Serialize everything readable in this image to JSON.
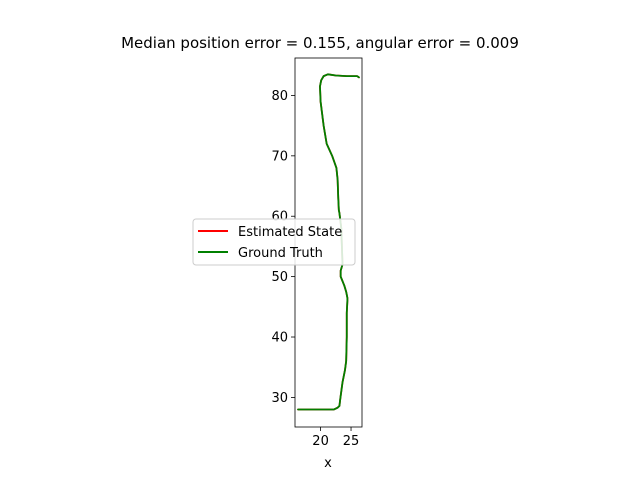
{
  "chart_data": {
    "type": "line",
    "title": "Median position error = 0.155, angular error = 0.009",
    "xlabel": "x",
    "ylabel": "",
    "xlim": [
      15.8,
      26.8
    ],
    "ylim": [
      25.1,
      86.2
    ],
    "xticks": [
      20,
      25
    ],
    "yticks": [
      30,
      40,
      50,
      60,
      70,
      80
    ],
    "grid": false,
    "legend": "center-left",
    "series": [
      {
        "name": "Estimated State",
        "color": "#ff0000",
        "x": [
          16.3,
          17.0,
          20.0,
          22.2,
          22.8,
          23.1,
          23.2,
          23.4,
          23.6,
          24.0,
          24.2,
          24.3,
          24.3,
          24.4,
          24.4,
          24.3,
          24.2,
          23.9,
          23.5,
          23.3,
          23.3,
          23.6,
          23.5,
          23.4,
          23.1,
          23.0,
          22.9,
          22.8,
          22.6,
          21.9,
          21.0,
          20.5,
          20.0,
          19.9,
          20.1,
          20.5,
          21.2,
          22.5,
          24.3,
          25.5,
          26.0,
          26.3
        ],
        "y": [
          28.0,
          28.0,
          28.0,
          28.0,
          28.3,
          28.6,
          29.5,
          31.0,
          32.5,
          34.5,
          36.0,
          40.0,
          44.0,
          46.0,
          46.5,
          47.0,
          47.5,
          48.5,
          49.5,
          50.0,
          51.0,
          52.0,
          55.0,
          58.0,
          60.5,
          61.0,
          63.0,
          66.0,
          68.0,
          70.0,
          72.0,
          75.0,
          79.0,
          81.5,
          82.5,
          83.2,
          83.5,
          83.3,
          83.2,
          83.2,
          83.2,
          83.0
        ]
      },
      {
        "name": "Ground Truth",
        "color": "#008000",
        "x": [
          16.3,
          17.0,
          20.0,
          22.2,
          22.8,
          23.1,
          23.2,
          23.4,
          23.6,
          24.0,
          24.2,
          24.3,
          24.3,
          24.4,
          24.4,
          24.3,
          24.2,
          23.9,
          23.5,
          23.3,
          23.3,
          23.6,
          23.5,
          23.4,
          23.1,
          23.0,
          22.9,
          22.8,
          22.6,
          21.9,
          21.0,
          20.5,
          20.0,
          19.9,
          20.1,
          20.5,
          21.2,
          22.5,
          24.3,
          25.5,
          26.0,
          26.3
        ],
        "y": [
          28.0,
          28.0,
          28.0,
          28.0,
          28.3,
          28.6,
          29.5,
          31.0,
          32.5,
          34.5,
          36.0,
          40.0,
          44.0,
          46.0,
          46.5,
          47.0,
          47.5,
          48.5,
          49.5,
          50.0,
          51.0,
          52.0,
          55.0,
          58.0,
          60.5,
          61.0,
          63.0,
          66.0,
          68.0,
          70.0,
          72.0,
          75.0,
          79.0,
          81.5,
          82.5,
          83.2,
          83.5,
          83.3,
          83.2,
          83.2,
          83.2,
          83.0
        ]
      }
    ]
  }
}
